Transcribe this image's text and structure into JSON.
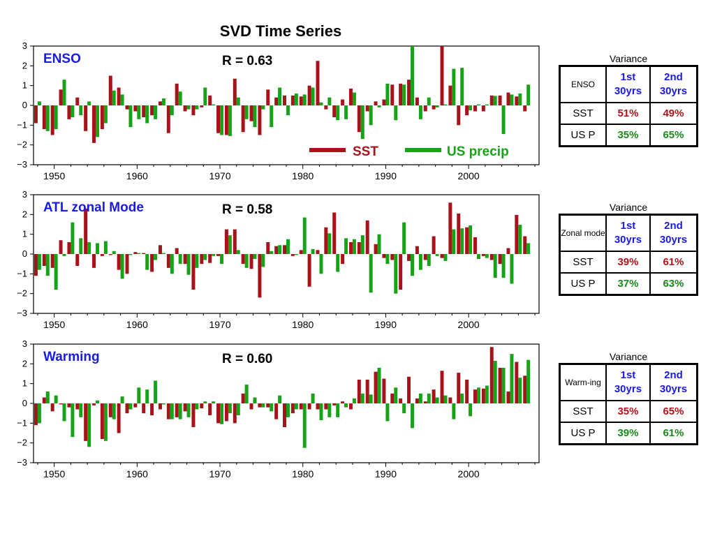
{
  "title": "SVD Time Series",
  "legend": {
    "sst": "SST",
    "us_precip": "US precip"
  },
  "colors": {
    "sst": "#a8121a",
    "us_precip": "#17a317",
    "mode_label": "#1a1ae6"
  },
  "variance_caption": "Variance",
  "table_headers": {
    "first": "1st 30yrs",
    "second": "2nd 30yrs"
  },
  "row_labels": {
    "sst": "SST",
    "us_p": "US P"
  },
  "chart_data": [
    {
      "type": "bar",
      "mode_label": "ENSO",
      "annotation": "R = 0.63",
      "xlim": [
        1947.5,
        2008.5
      ],
      "ylim": [
        -3,
        3
      ],
      "xticks": [
        1950,
        1960,
        1970,
        1980,
        1990,
        2000
      ],
      "yticks": [
        -3,
        -2,
        -1,
        0,
        1,
        2,
        3
      ],
      "x": [
        1948,
        1949,
        1950,
        1951,
        1952,
        1953,
        1954,
        1955,
        1956,
        1957,
        1958,
        1959,
        1960,
        1961,
        1962,
        1963,
        1964,
        1965,
        1966,
        1967,
        1968,
        1969,
        1970,
        1971,
        1972,
        1973,
        1974,
        1975,
        1976,
        1977,
        1978,
        1979,
        1980,
        1981,
        1982,
        1983,
        1984,
        1985,
        1986,
        1987,
        1988,
        1989,
        1990,
        1991,
        1992,
        1993,
        1994,
        1995,
        1996,
        1997,
        1998,
        1999,
        2000,
        2001,
        2002,
        2003,
        2004,
        2005,
        2006,
        2007
      ],
      "series": [
        {
          "name": "SST",
          "values": [
            -0.9,
            -1.2,
            -1.5,
            0.8,
            -0.7,
            0.4,
            -1.3,
            -1.9,
            -1.2,
            1.5,
            0.9,
            -0.2,
            -0.3,
            -0.6,
            -0.5,
            0.2,
            -1.4,
            1.1,
            -0.3,
            -0.5,
            -0.1,
            0.5,
            -1.4,
            -1.5,
            1.35,
            -1.35,
            -0.8,
            -1.5,
            0.8,
            0.4,
            0.5,
            0.5,
            0.45,
            1.0,
            2.25,
            -0.2,
            -0.6,
            0.3,
            0.85,
            -1.35,
            -0.3,
            0.2,
            0.3,
            1.05,
            1.1,
            1.3,
            0.4,
            -0.3,
            -0.2,
            3.0,
            1.0,
            -1.0,
            -0.5,
            -0.3,
            -0.3,
            0.5,
            0.5,
            0.65,
            0.45,
            -0.3
          ]
        },
        {
          "name": "US precip",
          "values": [
            0.2,
            -1.3,
            -1.2,
            1.3,
            -0.6,
            -0.5,
            0.2,
            -1.6,
            -0.9,
            0.75,
            0.55,
            -1.1,
            -0.7,
            -0.9,
            -0.7,
            0.35,
            -0.5,
            0.7,
            -0.2,
            -0.2,
            0.9,
            0.05,
            -1.5,
            -1.55,
            0.4,
            -0.7,
            -1.1,
            -0.2,
            -1.1,
            0.9,
            -0.5,
            0.6,
            0.55,
            0.9,
            0.15,
            0.4,
            -0.75,
            -0.7,
            0.65,
            -1.7,
            -1.0,
            -0.1,
            1.1,
            -0.75,
            1.05,
            3.0,
            -0.7,
            0.4,
            -0.1,
            0.05,
            1.85,
            1.9,
            -0.25,
            0.05,
            0.05,
            0.48,
            -1.45,
            0.55,
            0.6,
            1.05
          ]
        }
      ],
      "variance": {
        "mode_name": "ENSO",
        "sst": [
          "51%",
          "49%"
        ],
        "us_p": [
          "35%",
          "65%"
        ]
      }
    },
    {
      "type": "bar",
      "mode_label": "ATL zonal Mode",
      "annotation": "R = 0.58",
      "xlim": [
        1947.5,
        2008.5
      ],
      "ylim": [
        -3,
        3
      ],
      "xticks": [
        1950,
        1960,
        1970,
        1980,
        1990,
        2000
      ],
      "yticks": [
        -3,
        -2,
        -1,
        0,
        1,
        2,
        3
      ],
      "x": [
        1948,
        1949,
        1950,
        1951,
        1952,
        1953,
        1954,
        1955,
        1956,
        1957,
        1958,
        1959,
        1960,
        1961,
        1962,
        1963,
        1964,
        1965,
        1966,
        1967,
        1968,
        1969,
        1970,
        1971,
        1972,
        1973,
        1974,
        1975,
        1976,
        1977,
        1978,
        1979,
        1980,
        1981,
        1982,
        1983,
        1984,
        1985,
        1986,
        1987,
        1988,
        1989,
        1990,
        1991,
        1992,
        1993,
        1994,
        1995,
        1996,
        1997,
        1998,
        1999,
        2000,
        2001,
        2002,
        2003,
        2004,
        2005,
        2006,
        2007
      ],
      "series": [
        {
          "name": "SST",
          "values": [
            -1.1,
            -0.6,
            -0.7,
            0.7,
            0.6,
            -0.6,
            2.3,
            -0.7,
            -0.1,
            -0.05,
            -0.8,
            -1.0,
            0.1,
            0.05,
            -0.9,
            0.45,
            -0.7,
            0.3,
            -0.5,
            -1.8,
            -0.5,
            -0.45,
            -0.1,
            1.25,
            1.25,
            -0.5,
            -0.75,
            -2.2,
            0.6,
            0.4,
            0.45,
            -0.1,
            0.2,
            -1.65,
            0.2,
            1.35,
            2.1,
            -0.5,
            0.6,
            0.6,
            1.7,
            0.5,
            -0.2,
            -0.3,
            -1.8,
            -0.35,
            0.4,
            -0.3,
            0.9,
            -0.2,
            2.6,
            2.05,
            1.35,
            0.85,
            -0.1,
            -0.3,
            -0.5,
            0.3,
            1.98,
            0.9
          ]
        },
        {
          "name": "US precip",
          "values": [
            -0.8,
            -1.1,
            -1.8,
            -0.1,
            1.6,
            0.8,
            0.6,
            0.55,
            0.65,
            0.15,
            -1.25,
            -0.05,
            0.05,
            -0.8,
            -0.3,
            0.05,
            -1.0,
            -0.5,
            -1.05,
            -0.7,
            -0.3,
            -0.1,
            -0.5,
            0.95,
            0.2,
            -0.7,
            -0.25,
            -0.65,
            0.15,
            0.45,
            0.75,
            -0.05,
            1.85,
            0.25,
            -1.0,
            1.05,
            -0.9,
            0.8,
            0.75,
            0.95,
            -1.95,
            1.0,
            -0.5,
            -2.0,
            1.6,
            -1.1,
            -0.8,
            -0.6,
            -0.1,
            -0.35,
            1.25,
            1.3,
            1.45,
            -0.25,
            -0.2,
            -1.2,
            -1.2,
            -1.5,
            1.48,
            0.55
          ]
        }
      ],
      "variance": {
        "mode_name": "Zonal mode",
        "sst": [
          "39%",
          "61%"
        ],
        "us_p": [
          "37%",
          "63%"
        ]
      }
    },
    {
      "type": "bar",
      "mode_label": "Warming",
      "annotation": "R = 0.60",
      "xlim": [
        1947.5,
        2008.5
      ],
      "ylim": [
        -3,
        3
      ],
      "xticks": [
        1950,
        1960,
        1970,
        1980,
        1990,
        2000
      ],
      "yticks": [
        -3,
        -2,
        -1,
        0,
        1,
        2,
        3
      ],
      "x": [
        1948,
        1949,
        1950,
        1951,
        1952,
        1953,
        1954,
        1955,
        1956,
        1957,
        1958,
        1959,
        1960,
        1961,
        1962,
        1963,
        1964,
        1965,
        1966,
        1967,
        1968,
        1969,
        1970,
        1971,
        1972,
        1973,
        1974,
        1975,
        1976,
        1977,
        1978,
        1979,
        1980,
        1981,
        1982,
        1983,
        1984,
        1985,
        1986,
        1987,
        1988,
        1989,
        1990,
        1991,
        1992,
        1993,
        1994,
        1995,
        1996,
        1997,
        1998,
        1999,
        2000,
        2001,
        2002,
        2003,
        2004,
        2005,
        2006,
        2007
      ],
      "series": [
        {
          "name": "SST",
          "values": [
            -1.1,
            0.3,
            -0.4,
            -0.05,
            -0.2,
            -0.3,
            -1.9,
            -0.1,
            -1.8,
            -0.7,
            -1.5,
            -0.5,
            -0.2,
            -0.5,
            -0.6,
            -0.3,
            -0.8,
            -0.7,
            -0.4,
            -1.2,
            -0.25,
            -0.6,
            -1.0,
            -0.9,
            -1.0,
            0.5,
            -0.3,
            -0.2,
            -0.2,
            -0.8,
            -1.2,
            -0.5,
            -0.3,
            -0.3,
            -0.3,
            -0.3,
            -0.1,
            0.1,
            -0.3,
            1.2,
            1.2,
            1.6,
            1.25,
            0.5,
            0.25,
            1.35,
            0.25,
            0.1,
            0.7,
            1.65,
            0.3,
            1.55,
            1.2,
            0.7,
            0.75,
            2.85,
            1.8,
            0.6,
            2.1,
            1.4
          ]
        },
        {
          "name": "US precip",
          "values": [
            -1.0,
            0.6,
            0.4,
            -0.9,
            -1.7,
            -0.7,
            -2.2,
            0.15,
            -1.9,
            -0.8,
            0.35,
            -0.3,
            0.8,
            0.7,
            1.15,
            -0.05,
            -0.8,
            -0.8,
            -0.7,
            -0.3,
            0.1,
            0.1,
            -1.05,
            -0.5,
            -0.6,
            0.95,
            0.3,
            -0.2,
            -0.4,
            0.4,
            -0.7,
            -0.3,
            -2.25,
            0.5,
            -0.85,
            -0.7,
            -0.7,
            -0.2,
            0.25,
            0.5,
            0.45,
            1.8,
            -0.9,
            0.8,
            -0.5,
            -1.25,
            0.5,
            0.5,
            0.3,
            0.4,
            -0.8,
            0.5,
            -0.65,
            0.8,
            0.9,
            2.15,
            1.8,
            2.5,
            1.3,
            2.2
          ]
        }
      ],
      "variance": {
        "mode_name": "Warm-ing",
        "sst": [
          "35%",
          "65%"
        ],
        "us_p": [
          "39%",
          "61%"
        ]
      }
    }
  ]
}
